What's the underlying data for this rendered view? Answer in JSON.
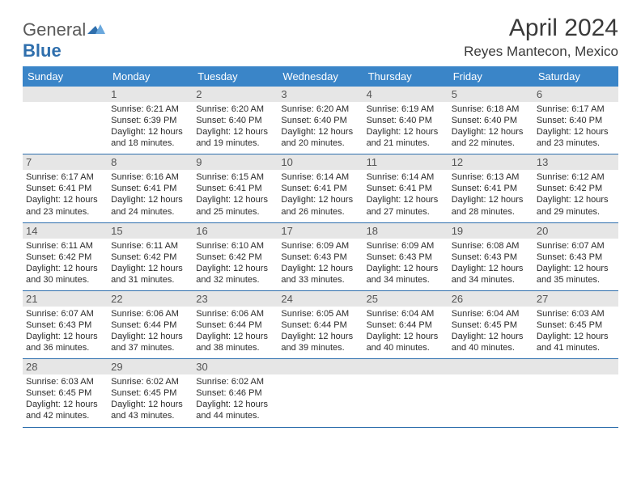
{
  "logo": {
    "word1": "General",
    "word2": "Blue"
  },
  "title": "April 2024",
  "location": "Reyes Mantecon, Mexico",
  "colors": {
    "header_band": "#3a85c8",
    "rule": "#2f6fad",
    "daynum_bg": "#e6e6e6",
    "text": "#2b2b2b",
    "logo_gray": "#5a5a5a",
    "logo_blue": "#2f6fad"
  },
  "dow": [
    "Sunday",
    "Monday",
    "Tuesday",
    "Wednesday",
    "Thursday",
    "Friday",
    "Saturday"
  ],
  "weeks": [
    [
      null,
      {
        "n": "1",
        "sr": "6:21 AM",
        "ss": "6:39 PM",
        "dl": "12 hours and 18 minutes."
      },
      {
        "n": "2",
        "sr": "6:20 AM",
        "ss": "6:40 PM",
        "dl": "12 hours and 19 minutes."
      },
      {
        "n": "3",
        "sr": "6:20 AM",
        "ss": "6:40 PM",
        "dl": "12 hours and 20 minutes."
      },
      {
        "n": "4",
        "sr": "6:19 AM",
        "ss": "6:40 PM",
        "dl": "12 hours and 21 minutes."
      },
      {
        "n": "5",
        "sr": "6:18 AM",
        "ss": "6:40 PM",
        "dl": "12 hours and 22 minutes."
      },
      {
        "n": "6",
        "sr": "6:17 AM",
        "ss": "6:40 PM",
        "dl": "12 hours and 23 minutes."
      }
    ],
    [
      {
        "n": "7",
        "sr": "6:17 AM",
        "ss": "6:41 PM",
        "dl": "12 hours and 23 minutes."
      },
      {
        "n": "8",
        "sr": "6:16 AM",
        "ss": "6:41 PM",
        "dl": "12 hours and 24 minutes."
      },
      {
        "n": "9",
        "sr": "6:15 AM",
        "ss": "6:41 PM",
        "dl": "12 hours and 25 minutes."
      },
      {
        "n": "10",
        "sr": "6:14 AM",
        "ss": "6:41 PM",
        "dl": "12 hours and 26 minutes."
      },
      {
        "n": "11",
        "sr": "6:14 AM",
        "ss": "6:41 PM",
        "dl": "12 hours and 27 minutes."
      },
      {
        "n": "12",
        "sr": "6:13 AM",
        "ss": "6:41 PM",
        "dl": "12 hours and 28 minutes."
      },
      {
        "n": "13",
        "sr": "6:12 AM",
        "ss": "6:42 PM",
        "dl": "12 hours and 29 minutes."
      }
    ],
    [
      {
        "n": "14",
        "sr": "6:11 AM",
        "ss": "6:42 PM",
        "dl": "12 hours and 30 minutes."
      },
      {
        "n": "15",
        "sr": "6:11 AM",
        "ss": "6:42 PM",
        "dl": "12 hours and 31 minutes."
      },
      {
        "n": "16",
        "sr": "6:10 AM",
        "ss": "6:42 PM",
        "dl": "12 hours and 32 minutes."
      },
      {
        "n": "17",
        "sr": "6:09 AM",
        "ss": "6:43 PM",
        "dl": "12 hours and 33 minutes."
      },
      {
        "n": "18",
        "sr": "6:09 AM",
        "ss": "6:43 PM",
        "dl": "12 hours and 34 minutes."
      },
      {
        "n": "19",
        "sr": "6:08 AM",
        "ss": "6:43 PM",
        "dl": "12 hours and 34 minutes."
      },
      {
        "n": "20",
        "sr": "6:07 AM",
        "ss": "6:43 PM",
        "dl": "12 hours and 35 minutes."
      }
    ],
    [
      {
        "n": "21",
        "sr": "6:07 AM",
        "ss": "6:43 PM",
        "dl": "12 hours and 36 minutes."
      },
      {
        "n": "22",
        "sr": "6:06 AM",
        "ss": "6:44 PM",
        "dl": "12 hours and 37 minutes."
      },
      {
        "n": "23",
        "sr": "6:06 AM",
        "ss": "6:44 PM",
        "dl": "12 hours and 38 minutes."
      },
      {
        "n": "24",
        "sr": "6:05 AM",
        "ss": "6:44 PM",
        "dl": "12 hours and 39 minutes."
      },
      {
        "n": "25",
        "sr": "6:04 AM",
        "ss": "6:44 PM",
        "dl": "12 hours and 40 minutes."
      },
      {
        "n": "26",
        "sr": "6:04 AM",
        "ss": "6:45 PM",
        "dl": "12 hours and 40 minutes."
      },
      {
        "n": "27",
        "sr": "6:03 AM",
        "ss": "6:45 PM",
        "dl": "12 hours and 41 minutes."
      }
    ],
    [
      {
        "n": "28",
        "sr": "6:03 AM",
        "ss": "6:45 PM",
        "dl": "12 hours and 42 minutes."
      },
      {
        "n": "29",
        "sr": "6:02 AM",
        "ss": "6:45 PM",
        "dl": "12 hours and 43 minutes."
      },
      {
        "n": "30",
        "sr": "6:02 AM",
        "ss": "6:46 PM",
        "dl": "12 hours and 44 minutes."
      },
      null,
      null,
      null,
      null
    ]
  ],
  "labels": {
    "sunrise": "Sunrise:",
    "sunset": "Sunset:",
    "daylight": "Daylight:"
  }
}
